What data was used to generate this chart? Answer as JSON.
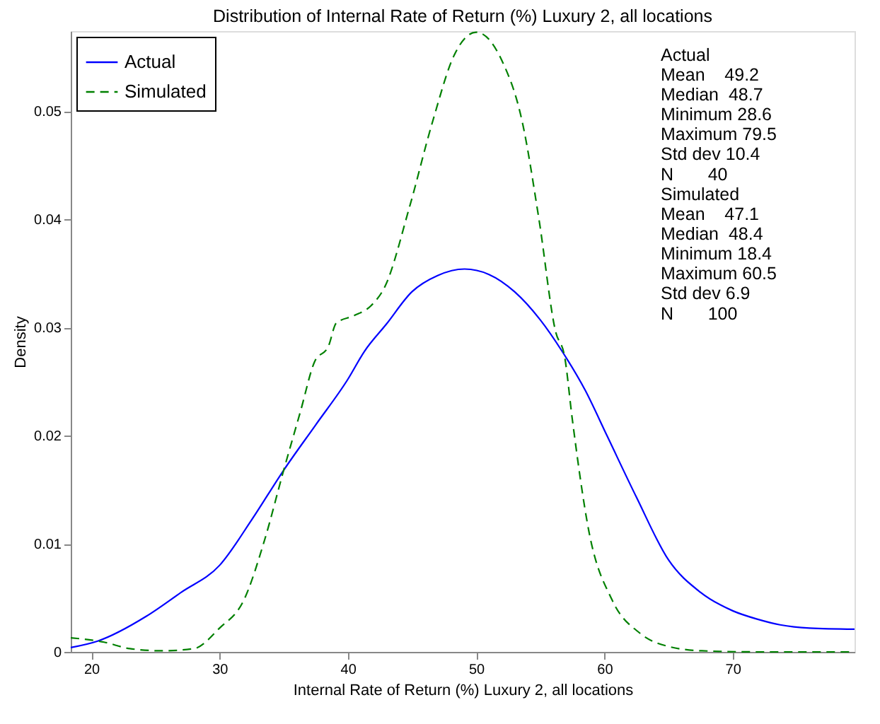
{
  "chart_data": {
    "type": "line",
    "title": "Distribution of Internal Rate of Return (%) Luxury 2, all locations",
    "xlabel": "Internal Rate of Return (%) Luxury 2, all locations",
    "ylabel": "Density",
    "xlim": [
      18.4,
      79.5
    ],
    "xticks": [
      20,
      30,
      40,
      50,
      60,
      70
    ],
    "ylim": [
      0,
      0.0574
    ],
    "yticks": [
      0,
      0.01,
      0.02,
      0.03,
      0.04,
      0.05
    ],
    "grid": false,
    "legend": "top left",
    "marker": "none",
    "series": [
      {
        "name": "Actual",
        "color": "#0000ff",
        "line_style": "solid",
        "x": [
          18.4,
          20.5,
          24.3,
          27,
          30,
          32.5,
          35,
          37.5,
          40,
          41.3,
          43,
          45,
          47,
          49.1,
          51,
          53,
          55,
          56.7,
          58.5,
          60.2,
          62.5,
          65,
          67.5,
          70,
          72,
          73.7,
          76,
          79.5
        ],
        "values": [
          0.0004,
          0.001,
          0.0033,
          0.0055,
          0.008,
          0.0122,
          0.0168,
          0.021,
          0.0252,
          0.0278,
          0.0303,
          0.0333,
          0.0348,
          0.0354,
          0.0349,
          0.0333,
          0.0307,
          0.0278,
          0.0242,
          0.02,
          0.0143,
          0.0085,
          0.0055,
          0.0038,
          0.003,
          0.0025,
          0.0022,
          0.0021
        ]
      },
      {
        "name": "Simulated",
        "color": "#008000",
        "line_style": "dashed",
        "x": [
          18.4,
          21,
          23,
          25.5,
          28,
          30,
          31.9,
          33.5,
          35,
          36.3,
          37.4,
          38.5,
          39.1,
          40.5,
          41.8,
          42.9,
          44.8,
          46.6,
          48.3,
          50,
          52,
          53.6,
          54.9,
          56.2,
          56.9,
          57.5,
          58.8,
          60.6,
          62.8,
          65,
          67.6,
          72,
          79.5
        ],
        "values": [
          0.0013,
          0.0009,
          0.0003,
          0.0001,
          0.0003,
          0.0022,
          0.0048,
          0.0103,
          0.0168,
          0.0222,
          0.0268,
          0.0283,
          0.0304,
          0.0311,
          0.032,
          0.0338,
          0.0411,
          0.049,
          0.0552,
          0.0573,
          0.0547,
          0.049,
          0.04,
          0.0296,
          0.0273,
          0.0215,
          0.0111,
          0.0048,
          0.0017,
          0.0005,
          0.0001,
          0,
          0
        ]
      }
    ],
    "annotations": [
      "Actual",
      "Mean    49.2",
      "Median  48.7",
      "Minimum 28.6",
      "Maximum 79.5",
      "Std dev 10.4",
      "N       40",
      "Simulated",
      "Mean    47.1",
      "Median  48.4",
      "Minimum 18.4",
      "Maximum 60.5",
      "Std dev 6.9",
      "N       100"
    ]
  }
}
